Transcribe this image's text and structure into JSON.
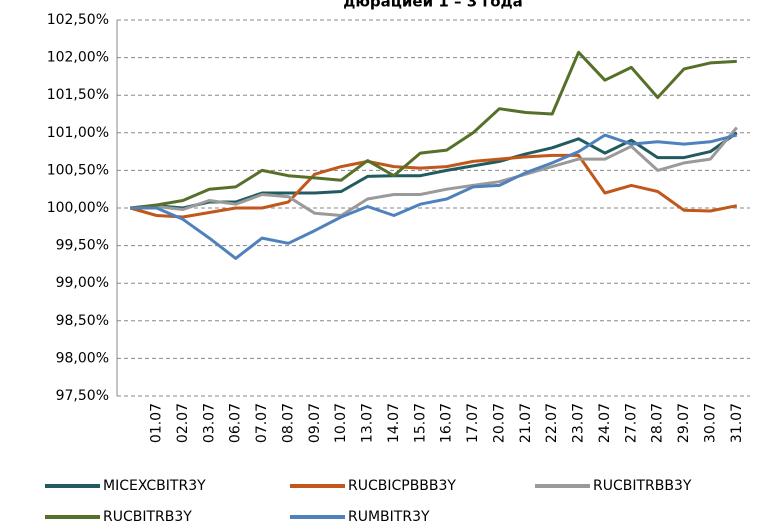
{
  "chart_data": {
    "type": "line",
    "title": "дюрацией 1 – 3 года",
    "categories": [
      null,
      "01.07",
      "02.07",
      "03.07",
      "06.07",
      "07.07",
      "08.07",
      "09.07",
      "10.07",
      "13.07",
      "14.07",
      "15.07",
      "16.07",
      "17.07",
      "20.07",
      "21.07",
      "22.07",
      "23.07",
      "24.07",
      "27.07",
      "28.07",
      "29.07",
      "30.07",
      "31.07"
    ],
    "series": [
      {
        "name": "MICEXCBITR3Y",
        "color": "#215b5f",
        "values": [
          100,
          100.03,
          100.0,
          100.08,
          100.08,
          100.2,
          100.2,
          100.2,
          100.22,
          100.42,
          100.43,
          100.43,
          100.5,
          100.56,
          100.62,
          100.72,
          100.8,
          100.92,
          100.73,
          100.9,
          100.67,
          100.67,
          100.75,
          101.0
        ]
      },
      {
        "name": "RUCBICPBBB3Y",
        "color": "#c0571b",
        "values": [
          100,
          99.9,
          99.88,
          99.94,
          100.0,
          100.0,
          100.08,
          100.45,
          100.55,
          100.62,
          100.55,
          100.53,
          100.55,
          100.62,
          100.65,
          100.68,
          100.7,
          100.7,
          100.2,
          100.3,
          100.22,
          99.97,
          99.96,
          100.03
        ]
      },
      {
        "name": "RUCBITRBB3Y",
        "color": "#9a9a9a",
        "values": [
          100,
          100.02,
          99.98,
          100.1,
          100.05,
          100.18,
          100.15,
          99.93,
          99.9,
          100.12,
          100.18,
          100.18,
          100.25,
          100.3,
          100.35,
          100.45,
          100.55,
          100.65,
          100.65,
          100.82,
          100.5,
          100.6,
          100.65,
          101.07
        ]
      },
      {
        "name": "RUCBITRB3Y",
        "color": "#56702a",
        "values": [
          100,
          100.04,
          100.1,
          100.25,
          100.28,
          100.5,
          100.43,
          100.4,
          100.37,
          100.63,
          100.43,
          100.73,
          100.77,
          101.0,
          101.32,
          101.27,
          101.25,
          102.07,
          101.7,
          101.87,
          101.47,
          101.85,
          101.93,
          101.95
        ]
      },
      {
        "name": "RUMBITR3Y",
        "color": "#4f81bd",
        "values": [
          100,
          100.0,
          99.85,
          99.6,
          99.33,
          99.6,
          99.53,
          99.7,
          99.88,
          100.02,
          99.9,
          100.05,
          100.12,
          100.28,
          100.3,
          100.47,
          100.6,
          100.75,
          100.97,
          100.85,
          100.88,
          100.85,
          100.88,
          100.97
        ]
      }
    ],
    "ylim": [
      97.5,
      102.5
    ],
    "yticks": [
      {
        "value": 97.5,
        "label": "97,50%"
      },
      {
        "value": 98,
        "label": "98,00%"
      },
      {
        "value": 98.5,
        "label": "98,50%"
      },
      {
        "value": 99,
        "label": "99,00%"
      },
      {
        "value": 99.5,
        "label": "99,50%"
      },
      {
        "value": 100,
        "label": "100,00%"
      },
      {
        "value": 100.5,
        "label": "100,50%"
      },
      {
        "value": 101,
        "label": "101,00%"
      },
      {
        "value": 101.5,
        "label": "101,50%"
      },
      {
        "value": 102,
        "label": "102,00%"
      },
      {
        "value": 102.5,
        "label": "102,50%"
      }
    ],
    "grid": true
  }
}
